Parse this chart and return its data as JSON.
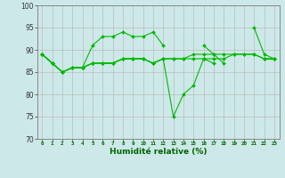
{
  "xlabel": "Humidité relative (%)",
  "background_color": "#cce8e8",
  "grid_color": "#bbbbbb",
  "line_color": "#00bb00",
  "xlim": [
    -0.5,
    23.5
  ],
  "ylim": [
    70,
    100
  ],
  "xticks": [
    0,
    1,
    2,
    3,
    4,
    5,
    6,
    7,
    8,
    9,
    10,
    11,
    12,
    13,
    14,
    15,
    16,
    17,
    18,
    19,
    20,
    21,
    22,
    23
  ],
  "yticks": [
    70,
    75,
    80,
    85,
    90,
    95,
    100
  ],
  "series": [
    [
      89,
      87,
      85,
      86,
      86,
      91,
      93,
      93,
      94,
      93,
      93,
      94,
      91,
      null,
      null,
      null,
      91,
      89,
      87,
      null,
      null,
      95,
      89,
      88
    ],
    [
      89,
      87,
      85,
      86,
      86,
      87,
      87,
      87,
      88,
      88,
      88,
      87,
      88,
      75,
      80,
      82,
      88,
      87,
      null,
      null,
      null,
      null,
      88,
      88
    ],
    [
      89,
      87,
      85,
      86,
      86,
      87,
      87,
      87,
      88,
      88,
      88,
      87,
      88,
      88,
      88,
      88,
      88,
      88,
      88,
      89,
      89,
      89,
      88,
      88
    ],
    [
      89,
      87,
      85,
      86,
      86,
      87,
      87,
      87,
      88,
      88,
      88,
      87,
      88,
      88,
      88,
      89,
      89,
      89,
      89,
      89,
      89,
      89,
      88,
      88
    ]
  ]
}
